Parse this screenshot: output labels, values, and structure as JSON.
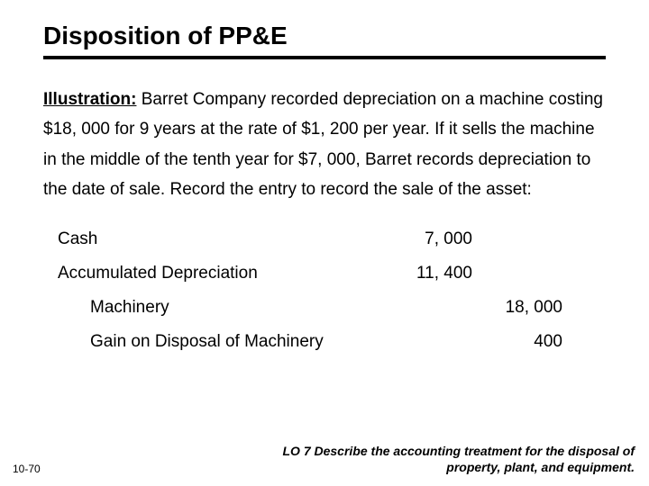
{
  "title": "Disposition of PP&E",
  "illustration_label": "Illustration:",
  "body": "  Barret Company recorded depreciation on a machine costing $18, 000 for 9 years at the rate of $1, 200 per year. If it sells the machine in the middle of the tenth year for $7, 000, Barret records depreciation to the date of sale.  Record the entry to record the sale of the asset:",
  "journal": [
    {
      "account": "Cash",
      "indent": false,
      "debit": "7, 000",
      "credit": ""
    },
    {
      "account": "Accumulated Depreciation",
      "indent": false,
      "debit": "11, 400",
      "credit": ""
    },
    {
      "account": "Machinery",
      "indent": true,
      "debit": "",
      "credit": "18, 000"
    },
    {
      "account": "Gain on Disposal of Machinery",
      "indent": true,
      "debit": "",
      "credit": "400"
    }
  ],
  "page_number": "10-70",
  "learning_objective": "LO 7  Describe the accounting treatment for the disposal of property, plant, and equipment."
}
